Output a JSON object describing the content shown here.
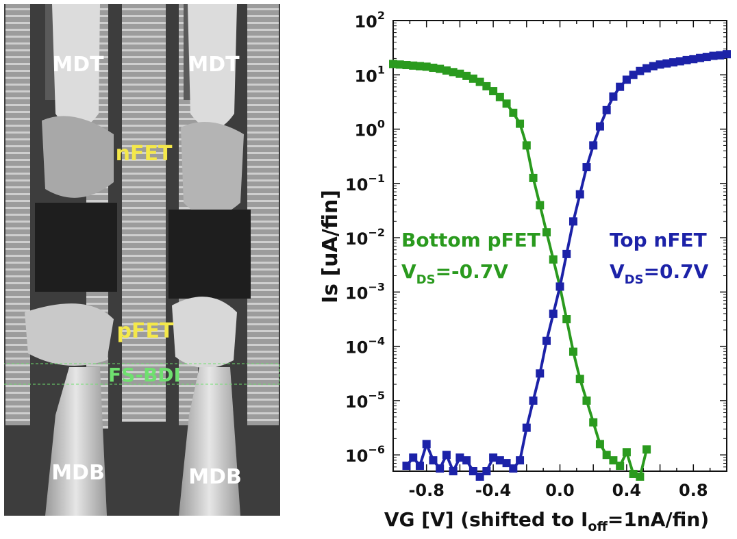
{
  "micrograph": {
    "labels": {
      "mdt_left": "MDT",
      "mdt_right": "MDT",
      "nfet": "nFET",
      "pfet": "pFET",
      "fs_bdi": "FS-BDI",
      "mdb_left": "MDB",
      "mdb_right": "MDB"
    },
    "colors": {
      "device_label": "#f4e84a",
      "fs_bdi": "#6fe06f",
      "contact_label": "#ffffff"
    }
  },
  "chart_data": {
    "type": "line",
    "title": "",
    "xlabel_main": "VG [V] (shifted to I",
    "xlabel_sub": "off",
    "xlabel_tail": "=1nA/fin)",
    "ylabel": "Is [uA/fin]",
    "xlim": [
      -1.0,
      1.0
    ],
    "ylim": [
      -6.3,
      2
    ],
    "log_y": true,
    "x_ticks": [
      "-0.8",
      "-0.4",
      "0.0",
      "0.4",
      "0.8"
    ],
    "x_tick_values": [
      -0.8,
      -0.4,
      0.0,
      0.4,
      0.8
    ],
    "y_tick_exponents": [
      "2",
      "1",
      "0",
      "−1",
      "−2",
      "−3",
      "−4",
      "−5",
      "−6"
    ],
    "y_tick_values": [
      2,
      1,
      0,
      -1,
      -2,
      -3,
      -4,
      -5,
      -6
    ],
    "y_tick_base": "10",
    "grid": false,
    "annotations": {
      "bottom_pfet": {
        "line1": "Bottom pFET",
        "v": "V",
        "sub": "DS",
        "value": "=-0.7V",
        "color": "#2a9a1e"
      },
      "top_nfet": {
        "line1": "Top nFET",
        "v": "V",
        "sub": "DS",
        "value": "=0.7V",
        "color": "#1c22a8"
      }
    },
    "series": [
      {
        "name": "Bottom pFET",
        "color": "#2a9a1e",
        "marker": "square",
        "points": [
          [
            -1.0,
            1.2
          ],
          [
            -0.96,
            1.19
          ],
          [
            -0.92,
            1.18
          ],
          [
            -0.88,
            1.17
          ],
          [
            -0.84,
            1.16
          ],
          [
            -0.8,
            1.15
          ],
          [
            -0.76,
            1.13
          ],
          [
            -0.72,
            1.11
          ],
          [
            -0.68,
            1.08
          ],
          [
            -0.64,
            1.05
          ],
          [
            -0.6,
            1.02
          ],
          [
            -0.56,
            0.98
          ],
          [
            -0.52,
            0.93
          ],
          [
            -0.48,
            0.87
          ],
          [
            -0.44,
            0.79
          ],
          [
            -0.4,
            0.7
          ],
          [
            -0.36,
            0.59
          ],
          [
            -0.32,
            0.47
          ],
          [
            -0.28,
            0.3
          ],
          [
            -0.24,
            0.1
          ],
          [
            -0.2,
            -0.3
          ],
          [
            -0.16,
            -0.9
          ],
          [
            -0.12,
            -1.4
          ],
          [
            -0.08,
            -1.9
          ],
          [
            -0.04,
            -2.4
          ],
          [
            0.0,
            -2.9
          ],
          [
            0.04,
            -3.5
          ],
          [
            0.08,
            -4.1
          ],
          [
            0.12,
            -4.6
          ],
          [
            0.16,
            -5.0
          ],
          [
            0.2,
            -5.4
          ],
          [
            0.24,
            -5.8
          ],
          [
            0.28,
            -6.0
          ],
          [
            0.32,
            -6.1
          ],
          [
            0.36,
            -6.2
          ],
          [
            0.4,
            -5.95
          ],
          [
            0.44,
            -6.35
          ],
          [
            0.48,
            -6.4
          ],
          [
            0.52,
            -5.9
          ]
        ]
      },
      {
        "name": "Top nFET",
        "color": "#1c22a8",
        "marker": "square",
        "points": [
          [
            -0.92,
            -6.2
          ],
          [
            -0.88,
            -6.05
          ],
          [
            -0.84,
            -6.2
          ],
          [
            -0.8,
            -5.8
          ],
          [
            -0.76,
            -6.1
          ],
          [
            -0.72,
            -6.25
          ],
          [
            -0.68,
            -6.0
          ],
          [
            -0.64,
            -6.3
          ],
          [
            -0.6,
            -6.05
          ],
          [
            -0.56,
            -6.1
          ],
          [
            -0.52,
            -6.3
          ],
          [
            -0.48,
            -6.4
          ],
          [
            -0.44,
            -6.3
          ],
          [
            -0.4,
            -6.05
          ],
          [
            -0.36,
            -6.1
          ],
          [
            -0.32,
            -6.15
          ],
          [
            -0.28,
            -6.25
          ],
          [
            -0.24,
            -6.1
          ],
          [
            -0.2,
            -5.5
          ],
          [
            -0.16,
            -5.0
          ],
          [
            -0.12,
            -4.5
          ],
          [
            -0.08,
            -3.9
          ],
          [
            -0.04,
            -3.4
          ],
          [
            0.0,
            -2.9
          ],
          [
            0.04,
            -2.3
          ],
          [
            0.08,
            -1.7
          ],
          [
            0.12,
            -1.2
          ],
          [
            0.16,
            -0.7
          ],
          [
            0.2,
            -0.3
          ],
          [
            0.24,
            0.05
          ],
          [
            0.28,
            0.35
          ],
          [
            0.32,
            0.6
          ],
          [
            0.36,
            0.78
          ],
          [
            0.4,
            0.91
          ],
          [
            0.44,
            1.0
          ],
          [
            0.48,
            1.07
          ],
          [
            0.52,
            1.12
          ],
          [
            0.56,
            1.16
          ],
          [
            0.6,
            1.19
          ],
          [
            0.64,
            1.21
          ],
          [
            0.68,
            1.23
          ],
          [
            0.72,
            1.25
          ],
          [
            0.76,
            1.27
          ],
          [
            0.8,
            1.29
          ],
          [
            0.84,
            1.31
          ],
          [
            0.88,
            1.33
          ],
          [
            0.92,
            1.35
          ],
          [
            0.96,
            1.36
          ],
          [
            1.0,
            1.38
          ]
        ]
      }
    ]
  }
}
